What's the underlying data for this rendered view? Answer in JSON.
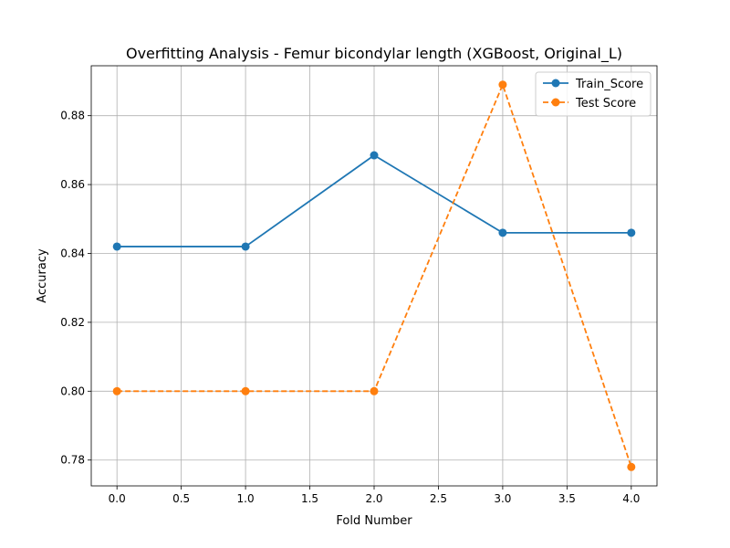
{
  "chart_data": {
    "type": "line",
    "title": "Overfitting Analysis - Femur bicondylar length (XGBoost, Original_L)",
    "xlabel": "Fold Number",
    "ylabel": "Accuracy",
    "x": [
      0,
      1,
      2,
      3,
      4
    ],
    "xlim": [
      -0.2,
      4.2
    ],
    "ylim": [
      0.7725,
      0.8945
    ],
    "xticks": [
      0.0,
      0.5,
      1.0,
      1.5,
      2.0,
      2.5,
      3.0,
      3.5,
      4.0
    ],
    "xtick_labels": [
      "0.0",
      "0.5",
      "1.0",
      "1.5",
      "2.0",
      "2.5",
      "3.0",
      "3.5",
      "4.0"
    ],
    "yticks": [
      0.78,
      0.8,
      0.82,
      0.84,
      0.86,
      0.88
    ],
    "ytick_labels": [
      "0.78",
      "0.80",
      "0.82",
      "0.84",
      "0.86",
      "0.88"
    ],
    "grid": true,
    "legend_position": "top-right",
    "series": [
      {
        "name": "Train_Score",
        "values": [
          0.842,
          0.842,
          0.8685,
          0.846,
          0.846
        ],
        "color": "#1f77b4",
        "line_style": "solid",
        "marker": "circle"
      },
      {
        "name": "Test Score",
        "values": [
          0.8,
          0.8,
          0.8,
          0.889,
          0.778
        ],
        "color": "#ff7f0e",
        "line_style": "dashed",
        "marker": "circle"
      }
    ]
  }
}
